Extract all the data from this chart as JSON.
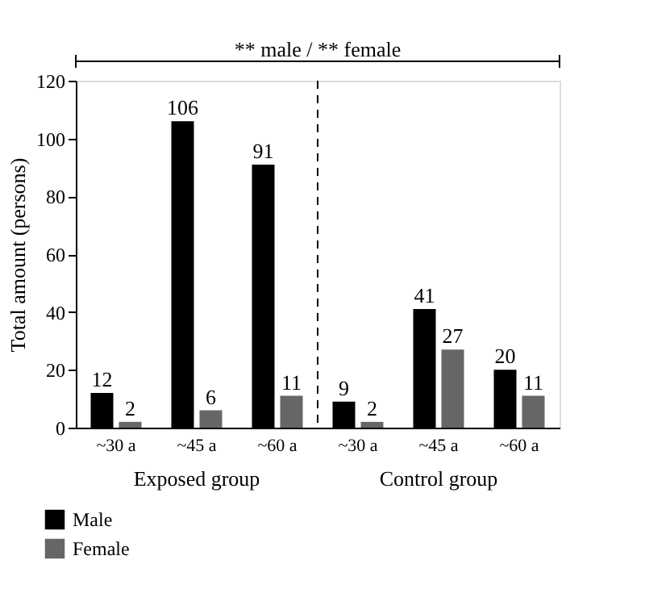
{
  "chart_data": {
    "type": "bar",
    "ylabel": "Total amount (persons)",
    "categories": [
      "~30 a",
      "~45 a",
      "~60 a",
      "~30 a",
      "~45 a",
      "~60 a"
    ],
    "series": [
      {
        "name": "Male",
        "color": "#000000",
        "values": [
          12,
          106,
          91,
          9,
          41,
          20
        ]
      },
      {
        "name": "Female",
        "color": "#666666",
        "values": [
          2,
          6,
          11,
          2,
          27,
          11
        ]
      }
    ],
    "ylim": [
      0,
      120
    ],
    "yticks": [
      0,
      20,
      40,
      60,
      80,
      100,
      120
    ],
    "data_labels": true,
    "grid": false,
    "legend": "bottom left",
    "annotations": [
      "** male / ** female",
      "Exposed group",
      "Control group"
    ]
  }
}
